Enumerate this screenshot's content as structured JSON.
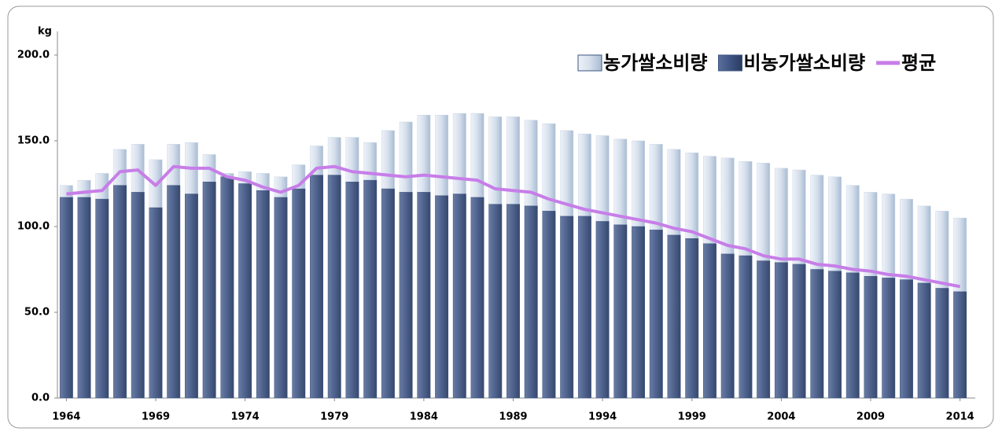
{
  "chart_data": {
    "type": "bar-line",
    "y_unit": "kg",
    "categories": [
      "1964",
      null,
      null,
      null,
      null,
      "1969",
      null,
      null,
      null,
      null,
      "1974",
      null,
      null,
      null,
      null,
      "1979",
      null,
      null,
      null,
      null,
      "1984",
      null,
      null,
      null,
      null,
      "1989",
      null,
      null,
      null,
      null,
      "1994",
      null,
      null,
      null,
      null,
      "1999",
      null,
      null,
      null,
      null,
      "2004",
      null,
      null,
      null,
      null,
      "2009",
      null,
      null,
      null,
      null,
      "2014"
    ],
    "series": [
      {
        "name": "농가쌀소비량",
        "type": "bar",
        "color": "#c9d6e6",
        "values": [
          124,
          127,
          131,
          145,
          148,
          139,
          148,
          149,
          142,
          131,
          132,
          131,
          129,
          136,
          147,
          152,
          152,
          149,
          156,
          161,
          165,
          165,
          166,
          166,
          164,
          164,
          162,
          160,
          156,
          154,
          153,
          151,
          150,
          148,
          145,
          143,
          141,
          140,
          138,
          137,
          134,
          133,
          130,
          129,
          124,
          120,
          119,
          116,
          112,
          109,
          105
        ]
      },
      {
        "name": "비농가쌀소비량",
        "type": "bar",
        "color": "#3e5482",
        "values": [
          117,
          117,
          116,
          124,
          120,
          111,
          124,
          119,
          126,
          129,
          125,
          121,
          117,
          122,
          130,
          130,
          126,
          127,
          122,
          120,
          120,
          118,
          119,
          117,
          113,
          113,
          112,
          109,
          106,
          106,
          103,
          101,
          100,
          98,
          95,
          93,
          90,
          84,
          83,
          80,
          79,
          78,
          75,
          74,
          73,
          71,
          70,
          69,
          67,
          64,
          62
        ]
      },
      {
        "name": "평균",
        "type": "line",
        "color": "#c77ee8",
        "values": [
          119,
          120,
          121,
          132,
          133,
          124,
          135,
          134,
          134,
          129,
          127,
          123,
          120,
          124,
          134,
          135,
          132,
          131,
          130,
          129,
          130,
          129,
          128,
          127,
          122,
          121,
          120,
          116,
          113,
          110,
          108,
          106,
          104,
          102,
          99,
          97,
          93,
          89,
          87,
          83,
          81,
          81,
          78,
          77,
          75,
          74,
          72,
          71,
          69,
          67,
          65
        ]
      }
    ],
    "ylim": [
      0,
      200
    ],
    "yticks": [
      {
        "value": 0,
        "label": "0.0"
      },
      {
        "value": 50,
        "label": "50.0"
      },
      {
        "value": 100,
        "label": "100.0"
      },
      {
        "value": 150,
        "label": "150.0"
      },
      {
        "value": 200,
        "label": "200.0"
      }
    ],
    "legend": "top-right"
  }
}
